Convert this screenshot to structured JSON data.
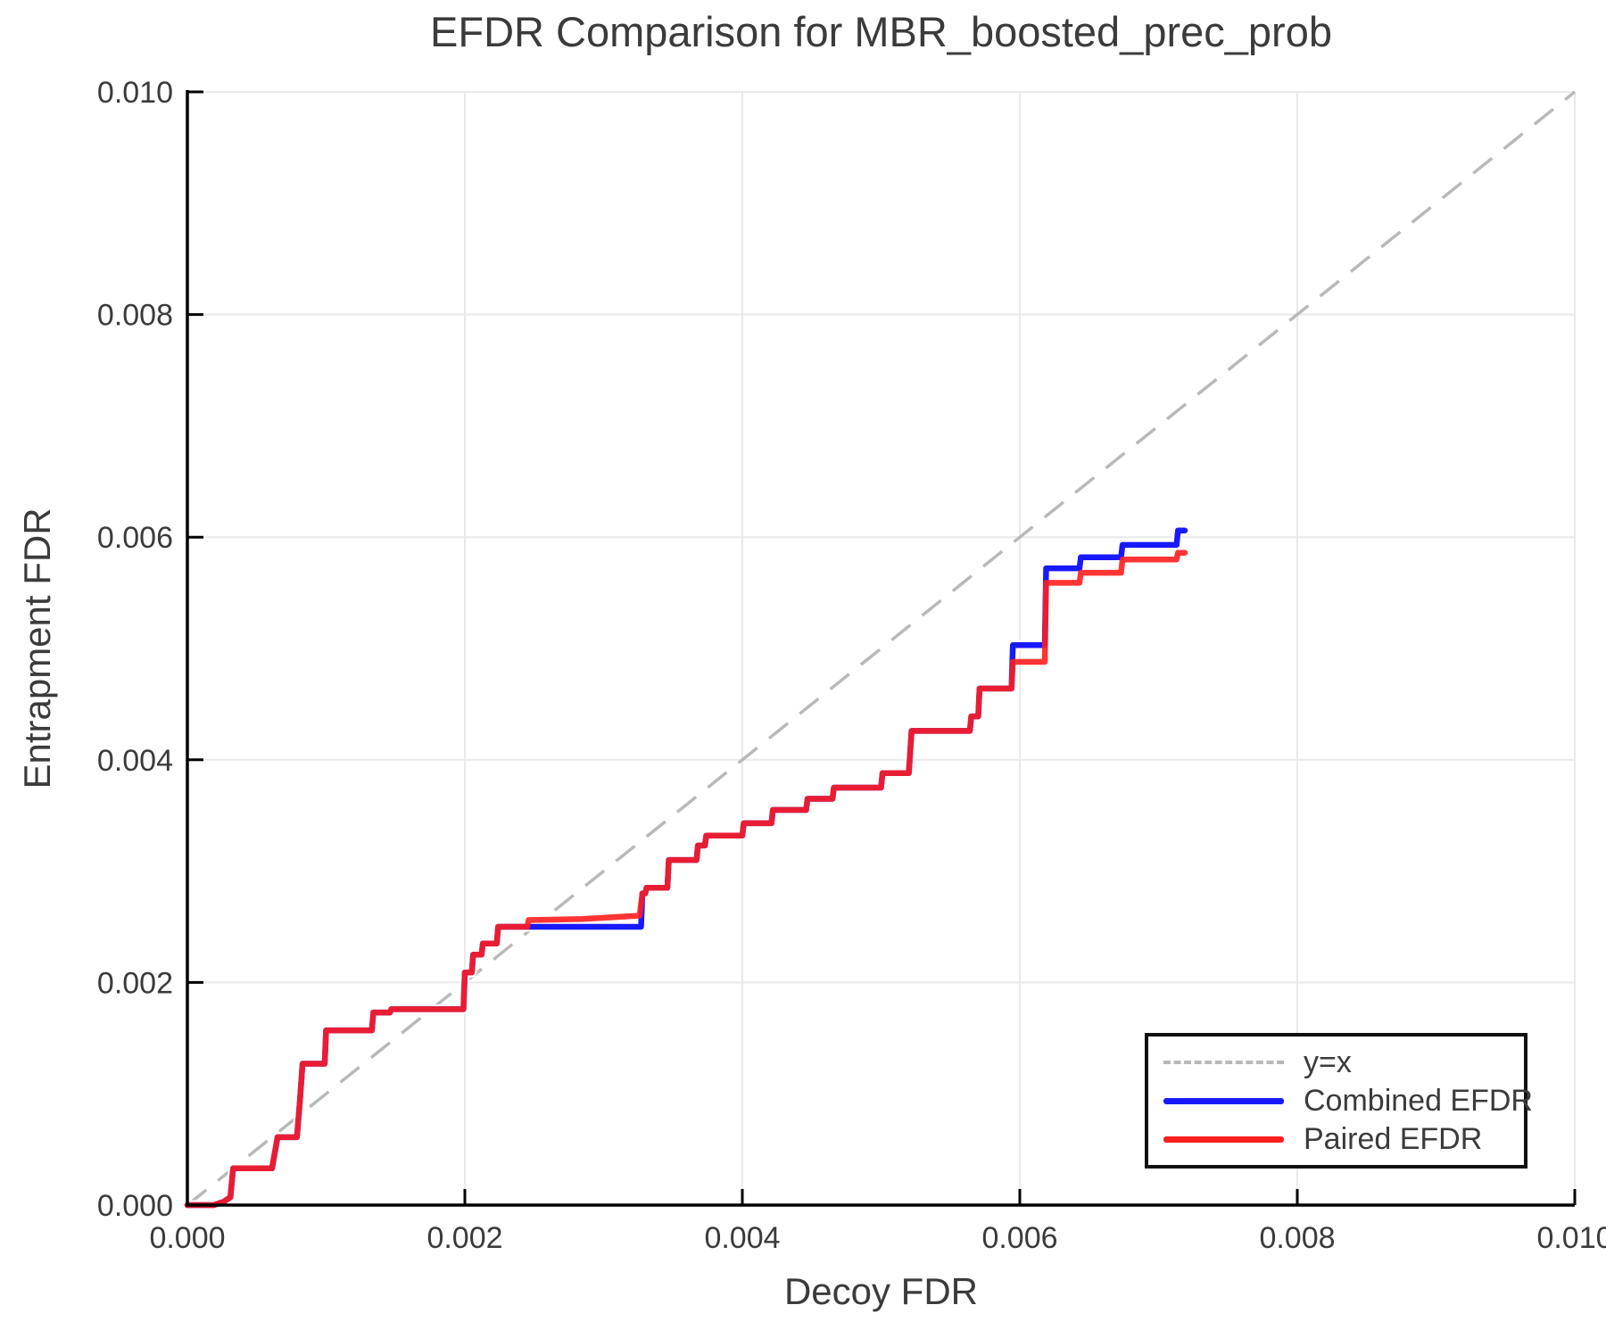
{
  "chart_data": {
    "type": "line",
    "title": "EFDR Comparison for MBR_boosted_prec_prob",
    "xlabel": "Decoy FDR",
    "ylabel": "Entrapment FDR",
    "xlim": [
      0,
      0.01
    ],
    "ylim": [
      0,
      0.01
    ],
    "grid": true,
    "legend_position": "lower right",
    "xticks": {
      "values": [
        0,
        0.002,
        0.004,
        0.006,
        0.008,
        0.01
      ],
      "labels": [
        "0.000",
        "0.002",
        "0.004",
        "0.006",
        "0.008",
        "0.010"
      ]
    },
    "yticks": {
      "values": [
        0,
        0.002,
        0.004,
        0.006,
        0.008,
        0.01
      ],
      "labels": [
        "0.000",
        "0.002",
        "0.004",
        "0.006",
        "0.008",
        "0.010"
      ]
    },
    "reference_line": {
      "name": "y=x",
      "style": "dashed",
      "color": "#b9b9b9",
      "from": [
        0,
        0
      ],
      "to": [
        0.01,
        0.01
      ]
    },
    "series": [
      {
        "name": "Combined EFDR",
        "color": "#1919ff",
        "points": [
          [
            0.0,
            0.0
          ],
          [
            0.00019,
            0.0
          ],
          [
            0.00026,
            3e-05
          ],
          [
            0.00031,
            7e-05
          ],
          [
            0.00033,
            0.00033
          ],
          [
            0.00061,
            0.00033
          ],
          [
            0.00065,
            0.00061
          ],
          [
            0.00079,
            0.00061
          ],
          [
            0.00081,
            0.00092
          ],
          [
            0.00083,
            0.00127
          ],
          [
            0.00099,
            0.00127
          ],
          [
            0.001,
            0.00157
          ],
          [
            0.00133,
            0.00157
          ],
          [
            0.00134,
            0.00173
          ],
          [
            0.00146,
            0.00173
          ],
          [
            0.00147,
            0.00176
          ],
          [
            0.00199,
            0.00176
          ],
          [
            0.002,
            0.00209
          ],
          [
            0.00205,
            0.00209
          ],
          [
            0.00206,
            0.00225
          ],
          [
            0.00212,
            0.00225
          ],
          [
            0.00213,
            0.00235
          ],
          [
            0.00223,
            0.00235
          ],
          [
            0.00224,
            0.0025
          ],
          [
            0.00327,
            0.0025
          ],
          [
            0.00328,
            0.0028
          ],
          [
            0.0033,
            0.0028
          ],
          [
            0.00331,
            0.00285
          ],
          [
            0.00346,
            0.00285
          ],
          [
            0.00347,
            0.0031
          ],
          [
            0.00367,
            0.0031
          ],
          [
            0.00368,
            0.00323
          ],
          [
            0.00373,
            0.00323
          ],
          [
            0.00374,
            0.00332
          ],
          [
            0.004,
            0.00332
          ],
          [
            0.00401,
            0.00343
          ],
          [
            0.00421,
            0.00343
          ],
          [
            0.00422,
            0.00355
          ],
          [
            0.00446,
            0.00355
          ],
          [
            0.00447,
            0.00365
          ],
          [
            0.00465,
            0.00365
          ],
          [
            0.00466,
            0.00375
          ],
          [
            0.005,
            0.00375
          ],
          [
            0.00501,
            0.00388
          ],
          [
            0.0052,
            0.00388
          ],
          [
            0.00522,
            0.00426
          ],
          [
            0.00564,
            0.00426
          ],
          [
            0.00565,
            0.00439
          ],
          [
            0.0057,
            0.00439
          ],
          [
            0.00571,
            0.00464
          ],
          [
            0.00594,
            0.00464
          ],
          [
            0.00595,
            0.00503
          ],
          [
            0.00618,
            0.00503
          ],
          [
            0.00619,
            0.00572
          ],
          [
            0.00643,
            0.00572
          ],
          [
            0.00644,
            0.00582
          ],
          [
            0.00673,
            0.00582
          ],
          [
            0.00674,
            0.00593
          ],
          [
            0.00713,
            0.00593
          ],
          [
            0.00714,
            0.00606
          ],
          [
            0.00719,
            0.00606
          ]
        ]
      },
      {
        "name": "Paired EFDR",
        "color": "#ff1e1e",
        "points": [
          [
            0.0,
            0.0
          ],
          [
            0.00019,
            0.0
          ],
          [
            0.00026,
            3e-05
          ],
          [
            0.00031,
            7e-05
          ],
          [
            0.00033,
            0.00033
          ],
          [
            0.00061,
            0.00033
          ],
          [
            0.00065,
            0.00061
          ],
          [
            0.00079,
            0.00061
          ],
          [
            0.00081,
            0.00092
          ],
          [
            0.00083,
            0.00127
          ],
          [
            0.00099,
            0.00127
          ],
          [
            0.001,
            0.00157
          ],
          [
            0.00133,
            0.00157
          ],
          [
            0.00134,
            0.00173
          ],
          [
            0.00146,
            0.00173
          ],
          [
            0.00147,
            0.00176
          ],
          [
            0.00199,
            0.00176
          ],
          [
            0.002,
            0.00209
          ],
          [
            0.00205,
            0.00209
          ],
          [
            0.00206,
            0.00225
          ],
          [
            0.00212,
            0.00225
          ],
          [
            0.00213,
            0.00235
          ],
          [
            0.00223,
            0.00235
          ],
          [
            0.00224,
            0.0025
          ],
          [
            0.00245,
            0.0025
          ],
          [
            0.00246,
            0.00256
          ],
          [
            0.00285,
            0.00257
          ],
          [
            0.00326,
            0.0026
          ],
          [
            0.00328,
            0.0028
          ],
          [
            0.0033,
            0.0028
          ],
          [
            0.00331,
            0.00285
          ],
          [
            0.00346,
            0.00285
          ],
          [
            0.00347,
            0.0031
          ],
          [
            0.00367,
            0.0031
          ],
          [
            0.00368,
            0.00323
          ],
          [
            0.00373,
            0.00323
          ],
          [
            0.00374,
            0.00332
          ],
          [
            0.004,
            0.00332
          ],
          [
            0.00401,
            0.00343
          ],
          [
            0.00421,
            0.00343
          ],
          [
            0.00422,
            0.00355
          ],
          [
            0.00446,
            0.00355
          ],
          [
            0.00447,
            0.00365
          ],
          [
            0.00465,
            0.00365
          ],
          [
            0.00466,
            0.00375
          ],
          [
            0.005,
            0.00375
          ],
          [
            0.00501,
            0.00388
          ],
          [
            0.0052,
            0.00388
          ],
          [
            0.00522,
            0.00426
          ],
          [
            0.00564,
            0.00426
          ],
          [
            0.00565,
            0.00439
          ],
          [
            0.0057,
            0.00439
          ],
          [
            0.00571,
            0.00464
          ],
          [
            0.00594,
            0.00464
          ],
          [
            0.00595,
            0.00488
          ],
          [
            0.00618,
            0.00488
          ],
          [
            0.00619,
            0.00559
          ],
          [
            0.00643,
            0.00559
          ],
          [
            0.00644,
            0.00568
          ],
          [
            0.00673,
            0.00568
          ],
          [
            0.00674,
            0.0058
          ],
          [
            0.00713,
            0.0058
          ],
          [
            0.00714,
            0.00586
          ],
          [
            0.00719,
            0.00586
          ]
        ]
      }
    ]
  }
}
